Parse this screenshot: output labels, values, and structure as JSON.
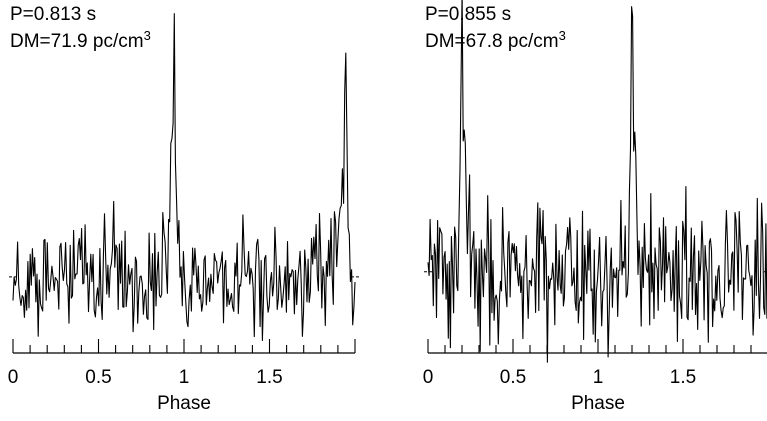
{
  "chart_data": [
    {
      "type": "line",
      "header": {
        "period": "P=0.813 s",
        "dm_prefix": "DM=71.9 pc/cm",
        "dm_sup": "3"
      },
      "xlabel": "Phase",
      "xlim": [
        0,
        2
      ],
      "ylim": [
        0,
        1
      ],
      "xticks_major": [
        0,
        0.5,
        1,
        1.5
      ],
      "xtick_labels": [
        "0",
        "0.5",
        "1",
        "1.5"
      ],
      "xticks_minor_step": 0.1,
      "baseline_level": 0.22,
      "series": [
        {
          "color": "#000000",
          "baseline": 0.22,
          "noise": 0.105,
          "seed": 813,
          "points": 300,
          "pulses": [
            {
              "phase": 0.944,
              "height": 1.0,
              "width": 0.006
            },
            {
              "phase": 1.944,
              "height": 1.0,
              "width": 0.006
            }
          ],
          "bumps": [
            {
              "phase": 0.932,
              "height": 0.28,
              "width": 0.02
            },
            {
              "phase": 1.932,
              "height": 0.28,
              "width": 0.02
            },
            {
              "phase": 1.905,
              "height": 0.1,
              "width": 0.03
            }
          ]
        }
      ]
    },
    {
      "type": "line",
      "header": {
        "period": "P=0.855 s",
        "dm_prefix": "DM=67.8 pc/cm",
        "dm_sup": "3"
      },
      "xlabel": "Phase",
      "xlim": [
        0,
        2
      ],
      "ylim": [
        0,
        1
      ],
      "xticks_major": [
        0,
        0.5,
        1,
        1.5
      ],
      "xtick_labels": [
        "0",
        "0.5",
        "1",
        "1.5"
      ],
      "xticks_minor_step": 0.1,
      "baseline_level": 0.24,
      "series": [
        {
          "color": "#000000",
          "baseline": 0.24,
          "noise": 0.13,
          "seed": 855,
          "points": 320,
          "pulses": [
            {
              "phase": 0.2,
              "height": 1.0,
              "width": 0.006
            },
            {
              "phase": 1.2,
              "height": 1.0,
              "width": 0.006
            }
          ],
          "bumps": [
            {
              "phase": 0.215,
              "height": 0.32,
              "width": 0.02
            },
            {
              "phase": 1.215,
              "height": 0.32,
              "width": 0.02
            }
          ]
        }
      ]
    }
  ]
}
